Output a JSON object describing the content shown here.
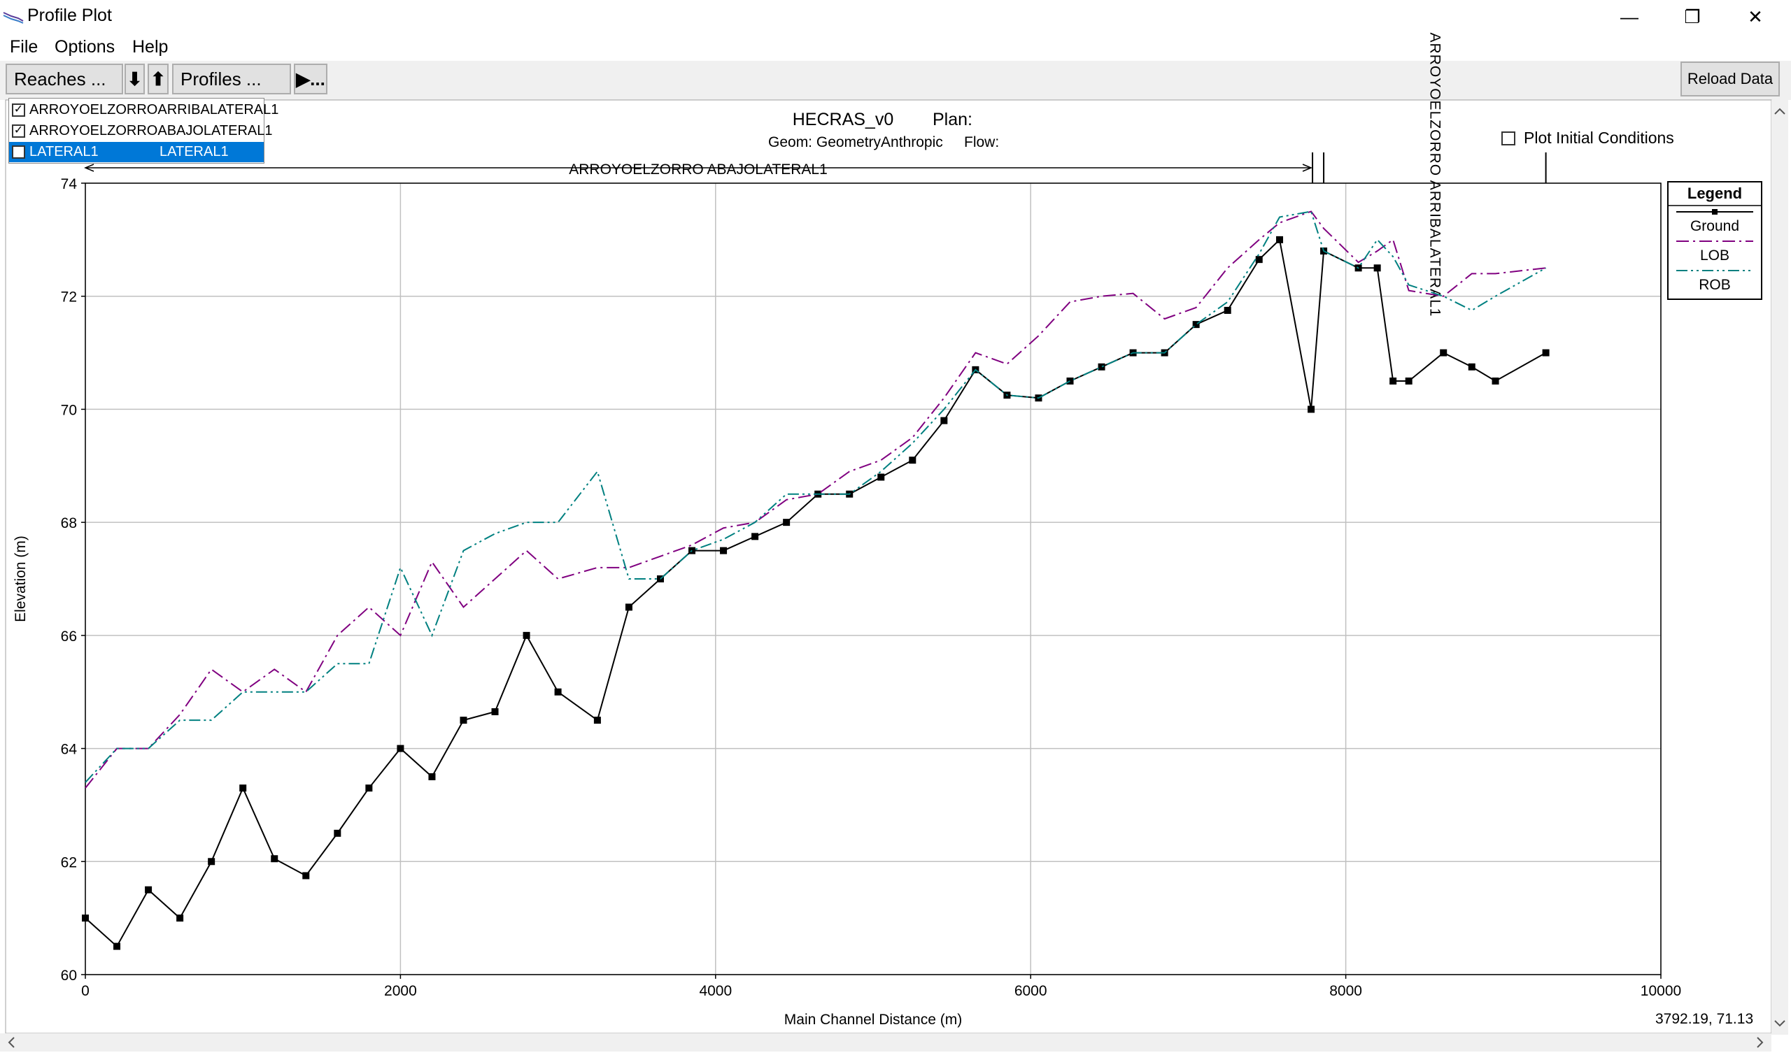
{
  "window": {
    "title": "Profile Plot",
    "minimize_glyph": "—",
    "maximize_glyph": "❐",
    "close_glyph": "✕"
  },
  "menu": {
    "items": [
      "File",
      "Options",
      "Help"
    ]
  },
  "toolbar": {
    "reaches_label": "Reaches ...",
    "down_label": "⬇",
    "up_label": "⬆",
    "profiles_label": "Profiles ...",
    "animate_label": "▶..."
  },
  "options": {
    "plot_initial_label": "Plot Initial Conditions",
    "reload_label": "Reload Data"
  },
  "reach_list": [
    {
      "river": "ARROYOELZORRO",
      "reach": "ARRIBALATERAL1",
      "checked": true,
      "selected": false
    },
    {
      "river": "ARROYOELZORRO",
      "reach": "ABAJOLATERAL1",
      "checked": true,
      "selected": false
    },
    {
      "river": "LATERAL1",
      "reach": "LATERAL1",
      "checked": false,
      "selected": true
    }
  ],
  "colors": {
    "ground": "#000000",
    "lob": "#800080",
    "rob": "#008080",
    "grid": "#c0c0c0",
    "highlight": "#0078d7"
  },
  "readout": "3792.19, 71.13",
  "chart_data": {
    "type": "line",
    "title": "HECRAS_v0",
    "plan_label": "Plan:",
    "geom_label": "Geom: GeometryAnthropic",
    "flow_label": "Flow:",
    "xlabel": "Main Channel Distance (m)",
    "ylabel": "Elevation (m)",
    "xlim": [
      0,
      10000
    ],
    "ylim": [
      60,
      74
    ],
    "xticks": [
      0,
      2000,
      4000,
      6000,
      8000,
      10000
    ],
    "yticks": [
      60,
      62,
      64,
      66,
      68,
      70,
      72,
      74
    ],
    "grid": true,
    "legend": {
      "title": "Legend",
      "position": "top-right"
    },
    "reach_annotations": [
      {
        "label": "ARROYOELZORRO ABAJOLATERAL1",
        "x_start": 0,
        "x_end": 7780
      },
      {
        "label": "ARROYOELZORRO ARRIBALATERAL1",
        "x_start": 7860,
        "x_end": 9270
      }
    ],
    "series": [
      {
        "name": "Ground",
        "style": "solid-square",
        "x": [
          0,
          200,
          400,
          600,
          800,
          1000,
          1200,
          1400,
          1600,
          1800,
          2000,
          2200,
          2400,
          2600,
          2800,
          3000,
          3250,
          3450,
          3650,
          3850,
          4050,
          4250,
          4450,
          4650,
          4850,
          5050,
          5250,
          5450,
          5650,
          5850,
          6050,
          6250,
          6450,
          6650,
          6850,
          7050,
          7250,
          7450,
          7580,
          7780,
          7860,
          8080,
          8200,
          8300,
          8400,
          8620,
          8800,
          8950,
          9270
        ],
        "y": [
          61.0,
          60.5,
          61.5,
          61.0,
          62.0,
          63.3,
          62.05,
          61.75,
          62.5,
          63.3,
          64.0,
          63.5,
          64.5,
          64.65,
          66.0,
          65.0,
          64.5,
          66.5,
          67.0,
          67.5,
          67.5,
          67.75,
          68.0,
          68.5,
          68.5,
          68.8,
          69.1,
          69.8,
          70.7,
          70.25,
          70.2,
          70.5,
          70.75,
          71.0,
          71.0,
          71.5,
          71.75,
          72.65,
          73.0,
          70.0,
          72.8,
          72.5,
          72.5,
          70.5,
          70.5,
          71.0,
          70.75,
          70.5,
          71.0
        ]
      },
      {
        "name": "LOB",
        "style": "dash-dot",
        "x": [
          0,
          200,
          400,
          600,
          800,
          1000,
          1200,
          1400,
          1600,
          1800,
          2000,
          2200,
          2400,
          2600,
          2800,
          3000,
          3250,
          3450,
          3650,
          3850,
          4050,
          4250,
          4450,
          4650,
          4850,
          5050,
          5250,
          5450,
          5650,
          5850,
          6050,
          6250,
          6450,
          6650,
          6850,
          7050,
          7250,
          7450,
          7580,
          7780,
          7860,
          8080,
          8200,
          8300,
          8400,
          8620,
          8800,
          8950,
          9270
        ],
        "y": [
          63.3,
          64.0,
          64.0,
          64.6,
          65.4,
          65.0,
          65.4,
          65.0,
          66.0,
          66.5,
          66.0,
          67.3,
          66.5,
          67.0,
          67.5,
          67.0,
          67.2,
          67.2,
          67.4,
          67.6,
          67.9,
          68.0,
          68.4,
          68.5,
          68.9,
          69.1,
          69.5,
          70.2,
          71.0,
          70.8,
          71.3,
          71.9,
          72.0,
          72.05,
          71.6,
          71.8,
          72.5,
          73.0,
          73.3,
          73.5,
          73.2,
          72.6,
          72.8,
          73.0,
          72.1,
          72.0,
          72.4,
          72.4,
          72.5
        ]
      },
      {
        "name": "ROB",
        "style": "dash-dot-dot",
        "x": [
          0,
          200,
          400,
          600,
          800,
          1000,
          1200,
          1400,
          1600,
          1800,
          2000,
          2200,
          2400,
          2600,
          2800,
          3000,
          3250,
          3450,
          3650,
          3850,
          4050,
          4250,
          4450,
          4650,
          4850,
          5050,
          5250,
          5450,
          5650,
          5850,
          6050,
          6250,
          6450,
          6650,
          6850,
          7050,
          7250,
          7450,
          7580,
          7780,
          7860,
          8080,
          8200,
          8300,
          8400,
          8620,
          8800,
          8950,
          9270
        ],
        "y": [
          63.4,
          64.0,
          64.0,
          64.5,
          64.5,
          65.0,
          65.0,
          65.0,
          65.5,
          65.5,
          67.2,
          66.0,
          67.5,
          67.8,
          68.0,
          68.0,
          68.9,
          67.0,
          67.0,
          67.5,
          67.7,
          68.0,
          68.5,
          68.5,
          68.5,
          68.9,
          69.4,
          70.0,
          70.7,
          70.25,
          70.2,
          70.5,
          70.75,
          71.0,
          71.0,
          71.5,
          71.9,
          72.75,
          73.4,
          73.5,
          72.8,
          72.5,
          73.0,
          72.7,
          72.2,
          72.0,
          71.75,
          72.0,
          72.5
        ]
      }
    ]
  }
}
